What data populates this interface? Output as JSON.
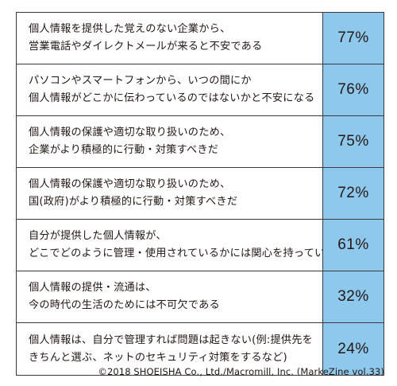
{
  "chart_data": {
    "type": "table",
    "rows": [
      {
        "lines": [
          "個人情報を提供した覚えのない企業から、",
          "営業電話やダイレクトメールが来ると不安である"
        ],
        "value": 77,
        "label": "77%"
      },
      {
        "lines": [
          "パソコンやスマートフォンから、いつの間にか",
          "個人情報がどこかに伝わっているのではないかと不安になる"
        ],
        "value": 76,
        "label": "76%"
      },
      {
        "lines": [
          "個人情報の保護や適切な取り扱いのため、",
          "企業がより積極的に行動・対策すべきだ"
        ],
        "value": 75,
        "label": "75%"
      },
      {
        "lines": [
          "個人情報の保護や適切な取り扱いのため、",
          "国(政府)がより積極的に行動・対策すべきだ"
        ],
        "value": 72,
        "label": "72%"
      },
      {
        "lines": [
          "自分が提供した個人情報が、",
          "どこでどのように管理・使用されているかには関心を持っている"
        ],
        "value": 61,
        "label": "61%"
      },
      {
        "lines": [
          "個人情報の提供・流通は、",
          "今の時代の生活のためには不可欠である"
        ],
        "value": 32,
        "label": "32%"
      },
      {
        "lines": [
          "個人情報は、自分で管理すれば問題は起きない(例:提供先を",
          "きちんと選ぶ、ネットのセキュリティ対策をするなど)"
        ],
        "value": 24,
        "label": "24%"
      }
    ],
    "value_cell_color": "#8ec8ec",
    "border_color": "#3a3a3a"
  },
  "footer": {
    "source": "©2018 SHOEISHA Co., Ltd./Macromill, Inc. (MarkeZine vol.33)"
  }
}
